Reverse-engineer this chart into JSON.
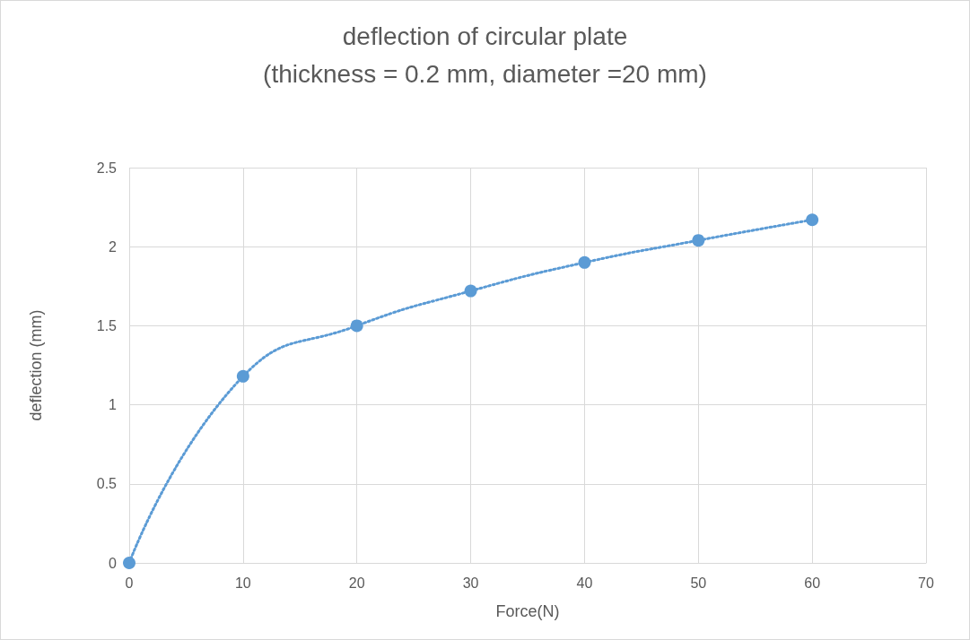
{
  "chart_data": {
    "type": "line",
    "title": "deflection of circular plate",
    "subtitle": "(thickness = 0.2 mm, diameter =20 mm)",
    "xlabel": "Force(N)",
    "ylabel": "deflection (mm)",
    "x": [
      0,
      10,
      20,
      30,
      40,
      50,
      60
    ],
    "series": [
      {
        "color": "#5b9bd5",
        "values": [
          0,
          1.18,
          1.5,
          1.72,
          1.9,
          2.04,
          2.17
        ]
      }
    ],
    "xlim": [
      0,
      70
    ],
    "xticks": [
      0,
      10,
      20,
      30,
      40,
      50,
      60,
      70
    ],
    "ylim": [
      0,
      2.5
    ],
    "yticks": [
      0,
      0.5,
      1,
      1.5,
      2,
      2.5
    ],
    "grid": true,
    "marker": "circle",
    "line_style": "dotted"
  }
}
